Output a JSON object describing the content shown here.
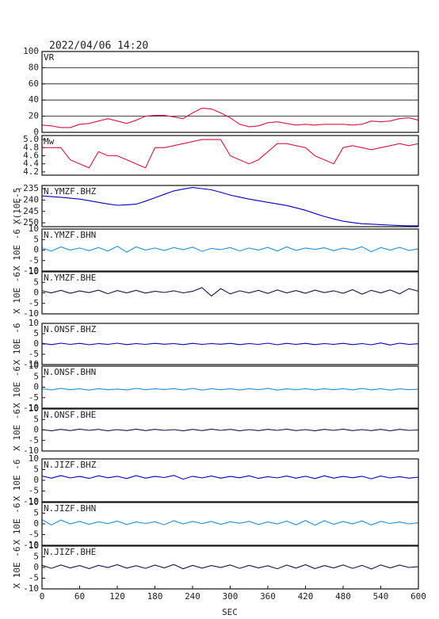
{
  "chart_data": {
    "type": "line",
    "title": "2022/04/06  14:20",
    "xlabel": "SEC",
    "xlim": [
      0,
      600
    ],
    "xticks": [
      0,
      60,
      120,
      180,
      240,
      300,
      360,
      420,
      480,
      540,
      600
    ],
    "x": [
      0,
      15,
      30,
      45,
      60,
      75,
      90,
      105,
      120,
      135,
      150,
      165,
      180,
      195,
      210,
      225,
      240,
      255,
      270,
      285,
      300,
      315,
      330,
      345,
      360,
      375,
      390,
      405,
      420,
      435,
      450,
      465,
      480,
      495,
      510,
      525,
      540,
      555,
      570,
      585,
      600
    ],
    "panels": [
      {
        "name": "VR",
        "color": "#dc143c",
        "grid": true,
        "ylim": [
          0,
          100
        ],
        "yticks": [
          0,
          20,
          40,
          60,
          80,
          100
        ],
        "values": [
          9,
          8,
          6,
          6,
          10,
          11,
          14,
          17,
          14,
          11,
          15,
          20,
          21,
          21,
          19,
          17,
          24,
          30,
          29,
          24,
          18,
          10,
          7,
          8,
          12,
          13,
          11,
          9,
          10,
          9,
          10,
          10,
          10,
          9,
          10,
          14,
          13,
          14,
          17,
          18,
          15
        ]
      },
      {
        "name": "Mw",
        "color": "#dc143c",
        "grid": false,
        "ylim": [
          4.12,
          5.1
        ],
        "yticks": [
          4.2,
          4.4,
          4.6,
          4.8,
          {
            "value": 5,
            "label": "5.0"
          }
        ],
        "values": [
          4.8,
          4.8,
          4.8,
          4.5,
          4.4,
          4.3,
          4.7,
          4.6,
          4.6,
          4.5,
          4.4,
          4.3,
          4.8,
          4.8,
          4.85,
          4.9,
          4.95,
          5.0,
          5.0,
          5.0,
          4.6,
          4.5,
          4.4,
          4.5,
          4.7,
          4.9,
          4.9,
          4.85,
          4.8,
          4.6,
          4.5,
          4.4,
          4.8,
          4.85,
          4.8,
          4.75,
          4.8,
          4.85,
          4.9,
          4.85,
          4.9
        ]
      },
      {
        "name": "N.YMZF.BHZ",
        "ylabel": "X(10E-5",
        "color": "#0000c8",
        "grid": false,
        "ylim": [
          -251.7,
          -233.6
        ],
        "yticks": [
          -235,
          -240,
          -245,
          -250
        ],
        "values": [
          -238.2,
          -238.5,
          -238.8,
          -239.2,
          -239.6,
          -240.3,
          -241,
          -241.7,
          -242.3,
          -242.1,
          -241.8,
          -240.5,
          -239,
          -237.5,
          -236,
          -235.2,
          -234.5,
          -235,
          -235.5,
          -236.6,
          -237.8,
          -238.7,
          -239.6,
          -240.3,
          -241,
          -241.7,
          -242.4,
          -243.4,
          -244.5,
          -245.9,
          -247.2,
          -248.3,
          -249.3,
          -249.9,
          -250.4,
          -250.6,
          -250.8,
          -251,
          -251.2,
          -251.3,
          -251.3
        ]
      },
      {
        "name": "N.YMZF.BHN",
        "ylabel": "X 10E -6",
        "color": "#1e8fe0",
        "grid": false,
        "ylim": [
          -10,
          10
        ],
        "yticks": [
          -10,
          -5,
          0,
          5,
          10
        ],
        "values": [
          1,
          -0.5,
          1.5,
          0,
          1,
          -0.3,
          1.2,
          -0.5,
          1.8,
          -1,
          1.5,
          0,
          1,
          -0.2,
          1.2,
          0.2,
          1.4,
          -0.6,
          0.8,
          0.2,
          1.2,
          -0.4,
          1,
          0,
          1.3,
          -0.5,
          1.5,
          -0.2,
          1,
          0.3,
          1.1,
          -0.3,
          0.9,
          0.1,
          1.6,
          -0.8,
          1.2,
          0,
          1.3,
          -0.2,
          0.6
        ]
      },
      {
        "name": "N.YMZF.BHE",
        "ylabel": "X 10E -6",
        "color": "#141450",
        "grid": false,
        "ylim": [
          -10,
          10
        ],
        "yticks": [
          -10,
          -5,
          0,
          5,
          10
        ],
        "values": [
          1,
          0,
          1.2,
          -0.2,
          0.9,
          0.1,
          1.3,
          -0.4,
          1.1,
          0,
          1.2,
          -0.1,
          0.8,
          0.2,
          1,
          0,
          0.7,
          2.5,
          -1.5,
          2,
          -0.5,
          1,
          0,
          1.2,
          -0.3,
          1.4,
          0,
          1.1,
          -0.2,
          1.3,
          0.1,
          1,
          -0.2,
          1.5,
          -0.6,
          1.2,
          0,
          1.4,
          -0.5,
          2,
          0.8
        ]
      },
      {
        "name": "N.ONSF.BHZ",
        "ylabel": "X 10E -6",
        "color": "#0000c0",
        "grid": false,
        "ylim": [
          -10,
          10
        ],
        "yticks": [
          -10,
          -5,
          0,
          5,
          10
        ],
        "values": [
          0.3,
          -0.3,
          0.4,
          -0.2,
          0.3,
          -0.4,
          0.2,
          -0.2,
          0.4,
          -0.3,
          0.2,
          -0.2,
          0.3,
          -0.1,
          0.2,
          -0.3,
          0.3,
          -0.2,
          0.2,
          -0.1,
          0.3,
          -0.3,
          0.2,
          -0.2,
          0.4,
          -0.4,
          0.3,
          -0.2,
          0.3,
          -0.3,
          0.2,
          -0.2,
          0.3,
          -0.3,
          0.2,
          -0.4,
          0.5,
          -0.5,
          0.4,
          -0.2,
          0.1
        ]
      },
      {
        "name": "N.ONSF.BHN",
        "ylabel": "X 10E -6",
        "color": "#1e8fe0",
        "grid": false,
        "ylim": [
          -10,
          10
        ],
        "yticks": [
          -10,
          -5,
          0,
          5,
          10
        ],
        "values": [
          -0.7,
          -1.3,
          -0.6,
          -1.2,
          -0.8,
          -1.4,
          -0.7,
          -1.2,
          -0.9,
          -1.3,
          -0.6,
          -1.2,
          -0.8,
          -1.1,
          -0.7,
          -1.3,
          -0.6,
          -1.4,
          -0.7,
          -1.2,
          -0.8,
          -1.3,
          -0.7,
          -1.2,
          -0.6,
          -1.4,
          -0.8,
          -1.2,
          -0.7,
          -1.3,
          -0.8,
          -1.2,
          -0.7,
          -1.3,
          -0.6,
          -1.3,
          -0.7,
          -1.4,
          -0.8,
          -1.2,
          -1
        ]
      },
      {
        "name": "N.ONSF.BHE",
        "ylabel": "X 10E -6",
        "color": "#141450",
        "grid": false,
        "ylim": [
          -10,
          10
        ],
        "yticks": [
          -10,
          -5,
          0,
          5,
          10
        ],
        "values": [
          0.2,
          -0.4,
          0.3,
          -0.3,
          0.4,
          -0.2,
          0.3,
          -0.4,
          0.2,
          -0.3,
          0.4,
          -0.3,
          0.3,
          -0.2,
          0.2,
          -0.4,
          0.3,
          -0.3,
          0.4,
          -0.2,
          0.3,
          -0.4,
          0.2,
          -0.3,
          0.3,
          -0.2,
          0.4,
          -0.3,
          0.2,
          -0.4,
          0.3,
          -0.2,
          0.4,
          -0.3,
          0.2,
          -0.3,
          0.3,
          -0.4,
          0.3,
          -0.2,
          0
        ]
      },
      {
        "name": "N.JIZF.BHZ",
        "ylabel": "X 10E -6",
        "color": "#0000c0",
        "grid": false,
        "ylim": [
          -10,
          10
        ],
        "yticks": [
          -10,
          -5,
          0,
          5,
          10
        ],
        "values": [
          2,
          1,
          2.2,
          1.1,
          1.8,
          0.9,
          2.1,
          1.2,
          1.9,
          0.8,
          2.2,
          1,
          1.8,
          1.3,
          2.3,
          0.5,
          1.9,
          1.1,
          2,
          1,
          1.8,
          1.2,
          2.1,
          0.9,
          1.7,
          1.1,
          2,
          1,
          1.9,
          0.8,
          2.1,
          1,
          1.8,
          1.2,
          1.9,
          0.7,
          2,
          1.1,
          1.7,
          1,
          1.5
        ]
      },
      {
        "name": "N.JIZF.BHN",
        "ylabel": "X 10E -6",
        "color": "#1e8fe0",
        "grid": false,
        "ylim": [
          -10,
          10
        ],
        "yticks": [
          -10,
          -5,
          0,
          5,
          10
        ],
        "values": [
          2,
          -0.5,
          1.8,
          0,
          1.2,
          -0.2,
          1,
          0.1,
          1.3,
          -0.3,
          0.9,
          0.2,
          1,
          -0.4,
          1.5,
          0,
          1.2,
          0.2,
          1.1,
          -0.2,
          1,
          0.3,
          1.2,
          -0.3,
          0.9,
          0,
          1.3,
          -0.4,
          1.6,
          -0.6,
          1.5,
          -0.2,
          1.1,
          0,
          1.4,
          -0.5,
          1.2,
          0.2,
          0.9,
          0,
          0.5
        ]
      },
      {
        "name": "N.JIZF.BHE",
        "ylabel": "X 10E -6",
        "color": "#141450",
        "grid": false,
        "ylim": [
          -10,
          10
        ],
        "yticks": [
          -10,
          -5,
          0,
          5,
          10
        ],
        "values": [
          1,
          -0.4,
          1.2,
          -0.2,
          0.9,
          -0.5,
          1,
          0,
          1.3,
          -0.3,
          0.8,
          -0.4,
          1.1,
          -0.2,
          1.4,
          -0.6,
          1,
          -0.3,
          0.9,
          0,
          1.2,
          -0.4,
          1,
          -0.2,
          0.8,
          -0.6,
          1.1,
          -0.3,
          1.3,
          -0.5,
          0.9,
          -0.2,
          1.2,
          -0.4,
          1,
          -0.7,
          1.2,
          -0.2,
          1.1,
          0,
          0.4
        ]
      }
    ]
  }
}
